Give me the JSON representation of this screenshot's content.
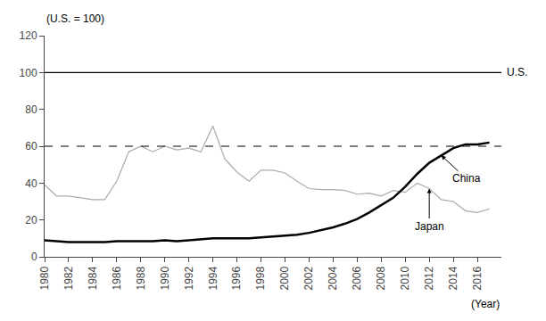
{
  "chart_data": {
    "type": "line",
    "ylabel": "(U.S. = 100)",
    "xlabel": "(Year)",
    "x": [
      1980,
      1981,
      1982,
      1983,
      1984,
      1985,
      1986,
      1987,
      1988,
      1989,
      1990,
      1991,
      1992,
      1993,
      1994,
      1995,
      1996,
      1997,
      1998,
      1999,
      2000,
      2001,
      2002,
      2003,
      2004,
      2005,
      2006,
      2007,
      2008,
      2009,
      2010,
      2011,
      2012,
      2013,
      2014,
      2015,
      2016,
      2017
    ],
    "series": [
      {
        "name": "Japan",
        "color": "#aaaaaa",
        "line_style": "solid",
        "values": [
          39.0,
          33.0,
          33.0,
          32.0,
          31.0,
          31.0,
          41.0,
          57.0,
          60.0,
          57.0,
          60.0,
          58.0,
          59.0,
          57.0,
          71.0,
          53.0,
          46.0,
          41.0,
          47.0,
          47.0,
          45.5,
          41.0,
          37.0,
          36.5,
          36.5,
          36.0,
          34.0,
          34.5,
          33.0,
          36.0,
          35.0,
          40.0,
          37.0,
          31.0,
          30.0,
          25.0,
          24.0,
          26.0
        ]
      },
      {
        "name": "China",
        "color": "#000000",
        "line_style": "solid",
        "values": [
          9.0,
          8.5,
          8.0,
          8.0,
          8.0,
          8.0,
          8.5,
          8.5,
          8.5,
          8.5,
          9.0,
          8.5,
          9.0,
          9.5,
          10.0,
          10.0,
          10.0,
          10.0,
          10.5,
          11.0,
          11.5,
          12.0,
          13.0,
          14.5,
          16.0,
          18.0,
          20.5,
          24.0,
          28.0,
          32.0,
          38.0,
          45.0,
          51.0,
          55.0,
          59.0,
          61.0,
          61.0,
          62.0
        ]
      }
    ],
    "hlines": [
      {
        "value": 100,
        "label": "U.S.",
        "color": "#000000",
        "line_style": "solid"
      },
      {
        "value": 60,
        "color": "#000000",
        "line_style": "dashed"
      }
    ],
    "xlim": [
      1980,
      2018
    ],
    "xticks": [
      1980,
      1982,
      1984,
      1986,
      1988,
      1990,
      1992,
      1994,
      1996,
      1998,
      2000,
      2002,
      2004,
      2006,
      2008,
      2010,
      2012,
      2014,
      2016
    ],
    "ylim": [
      0,
      120
    ],
    "yticks": [
      0,
      20,
      40,
      60,
      80,
      100,
      120
    ],
    "grid": false
  }
}
